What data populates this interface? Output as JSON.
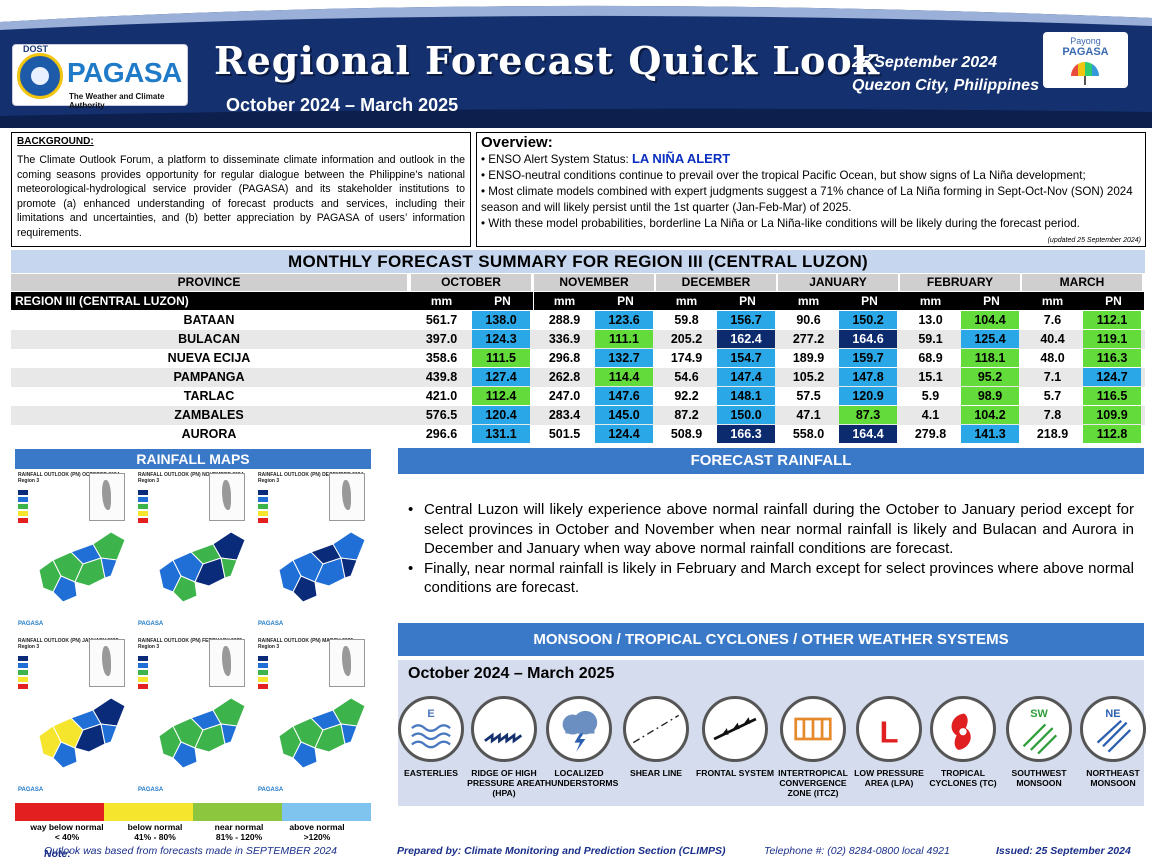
{
  "header": {
    "dost_label": "DOST",
    "agency_name": "PAGASA",
    "agency_tagline": "The Weather and Climate Authority",
    "title": "Regional Forecast Quick Look",
    "period": "October 2024 – March 2025",
    "date": "25 September 2024",
    "place": "Quezon City, Philippines",
    "payong_top": "Payong",
    "payong_name": "PAGASA",
    "colors": {
      "navy": "#14306e",
      "accent_blue": "#3a78c8",
      "light_blue": "#c6d6ee"
    }
  },
  "background": {
    "title": "BACKGROUND:",
    "text": "The Climate Outlook Forum, a platform to disseminate climate information and outlook in the coming seasons provides opportunity for regular dialogue between the Philippine’s national meteorological-hydrological service provider (PAGASA) and its stakeholder institutions to promote (a) enhanced understanding of forecast products and services, including their limitations and uncertainties, and (b) better appreciation by PAGASA of users’ information requirements."
  },
  "overview": {
    "title": "Overview:",
    "enso_prefix": "ENSO Alert System Status: ",
    "enso_status": "LA NIÑA ALERT",
    "bullets": [
      "ENSO-neutral conditions continue to prevail over the tropical Pacific Ocean, but show signs of La Niña development;",
      "Most climate models combined with expert judgments suggest a 71% chance of La Niña forming in Sept-Oct-Nov (SON) 2024 season and will likely persist until the 1st quarter (Jan-Feb-Mar) of 2025.",
      "With these model probabilities, borderline La Niña or La Niña-like conditions will be likely during the forecast period."
    ],
    "updated": "(updated 25 September 2024)"
  },
  "summary": {
    "title": "MONTHLY FORECAST SUMMARY FOR REGION III (CENTRAL LUZON)",
    "province_header": "PROVINCE",
    "region_label": "REGION III (CENTRAL LUZON)",
    "months": [
      "OCTOBER",
      "NOVEMBER",
      "DECEMBER",
      "JANUARY",
      "FEBRUARY",
      "MARCH"
    ],
    "unit_mm": "mm",
    "unit_pn": "PN",
    "rows": [
      {
        "province": "BATAAN",
        "values": [
          [
            "561.7",
            "138.0"
          ],
          [
            "288.9",
            "123.6"
          ],
          [
            "59.8",
            "156.7"
          ],
          [
            "90.6",
            "150.2"
          ],
          [
            "13.0",
            "104.4"
          ],
          [
            "7.6",
            "112.1"
          ]
        ]
      },
      {
        "province": "BULACAN",
        "values": [
          [
            "397.0",
            "124.3"
          ],
          [
            "336.9",
            "111.1"
          ],
          [
            "205.2",
            "162.4"
          ],
          [
            "277.2",
            "164.6"
          ],
          [
            "59.1",
            "125.4"
          ],
          [
            "40.4",
            "119.1"
          ]
        ]
      },
      {
        "province": "NUEVA ECIJA",
        "values": [
          [
            "358.6",
            "111.5"
          ],
          [
            "296.8",
            "132.7"
          ],
          [
            "174.9",
            "154.7"
          ],
          [
            "189.9",
            "159.7"
          ],
          [
            "68.9",
            "118.1"
          ],
          [
            "48.0",
            "116.3"
          ]
        ]
      },
      {
        "province": "PAMPANGA",
        "values": [
          [
            "439.8",
            "127.4"
          ],
          [
            "262.8",
            "114.4"
          ],
          [
            "54.6",
            "147.4"
          ],
          [
            "105.2",
            "147.8"
          ],
          [
            "15.1",
            "95.2"
          ],
          [
            "7.1",
            "124.7"
          ]
        ]
      },
      {
        "province": "TARLAC",
        "values": [
          [
            "421.0",
            "112.4"
          ],
          [
            "247.0",
            "147.6"
          ],
          [
            "92.2",
            "148.1"
          ],
          [
            "57.5",
            "120.9"
          ],
          [
            "5.9",
            "98.9"
          ],
          [
            "5.7",
            "116.5"
          ]
        ]
      },
      {
        "province": "ZAMBALES",
        "values": [
          [
            "576.5",
            "120.4"
          ],
          [
            "283.4",
            "145.0"
          ],
          [
            "87.2",
            "150.0"
          ],
          [
            "47.1",
            "87.3"
          ],
          [
            "4.1",
            "104.2"
          ],
          [
            "7.8",
            "109.9"
          ]
        ]
      },
      {
        "province": "AURORA",
        "values": [
          [
            "296.6",
            "131.1"
          ],
          [
            "501.5",
            "124.4"
          ],
          [
            "508.9",
            "166.3"
          ],
          [
            "558.0",
            "164.4"
          ],
          [
            "279.8",
            "141.3"
          ],
          [
            "218.9",
            "112.8"
          ]
        ]
      }
    ]
  },
  "rainfall_maps": {
    "title": "RAINFALL MAPS",
    "maps": [
      {
        "title": "RAINFALL OUTLOOK (PN) OCTOBER 2024",
        "region": "Region 3"
      },
      {
        "title": "RAINFALL OUTLOOK (PN) NOVEMBER 2024",
        "region": "Region 3"
      },
      {
        "title": "RAINFALL OUTLOOK (PN) DECEMBER 2024",
        "region": "Region 3"
      },
      {
        "title": "RAINFALL OUTLOOK (PN) JANUARY 2025",
        "region": "Region 3"
      },
      {
        "title": "RAINFALL OUTLOOK (PN) FEBRUARY 2025",
        "region": "Region 3"
      },
      {
        "title": "RAINFALL OUTLOOK (PN) MARCH 2025",
        "region": "Region 3"
      }
    ],
    "legend": [
      {
        "label": "way below normal",
        "range": "< 40%",
        "color": "#e41f1f"
      },
      {
        "label": "below normal",
        "range": "41%  -  80%",
        "color": "#f5e52c"
      },
      {
        "label": "near normal",
        "range": "81% - 120%",
        "color": "#3cb44b"
      },
      {
        "label": "above normal",
        "range": ">120%",
        "color": "#4aa8e0"
      }
    ]
  },
  "forecast_rainfall": {
    "title": "FORECAST RAINFALL",
    "bullets": [
      "Central Luzon will likely experience above normal rainfall during the October to January period except for select provinces in October and November when near normal rainfall is likely and Bulacan and Aurora in December and January when way above normal rainfall conditions are forecast.",
      "Finally, near normal rainfall is likely in February and March except for select provinces where above normal conditions are forecast."
    ]
  },
  "systems": {
    "title": "MONSOON / TROPICAL CYCLONES / OTHER WEATHER SYSTEMS",
    "period": "October 2024 – March 2025",
    "items": [
      {
        "label": "EASTERLIES",
        "icon": "easterlies-icon",
        "glyph": "E"
      },
      {
        "label": "RIDGE OF HIGH PRESSURE AREA (HPA)",
        "icon": "ridge-icon",
        "glyph": ""
      },
      {
        "label": "LOCALIZED THUNDERSTORMS",
        "icon": "thunderstorm-icon",
        "glyph": ""
      },
      {
        "label": "SHEAR LINE",
        "icon": "shear-line-icon",
        "glyph": ""
      },
      {
        "label": "FRONTAL SYSTEM",
        "icon": "frontal-system-icon",
        "glyph": ""
      },
      {
        "label": "INTERTROPICAL CONVERGENCE ZONE (ITCZ)",
        "icon": "itcz-icon",
        "glyph": ""
      },
      {
        "label": "LOW PRESSURE AREA (LPA)",
        "icon": "low-pressure-icon",
        "glyph": "L"
      },
      {
        "label": "TROPICAL CYCLONES (TC)",
        "icon": "tropical-cyclone-icon",
        "glyph": ""
      },
      {
        "label": "SOUTHWEST MONSOON",
        "icon": "southwest-monsoon-icon",
        "glyph": "SW"
      },
      {
        "label": "NORTHEAST MONSOON",
        "icon": "northeast-monsoon-icon",
        "glyph": "NE"
      }
    ]
  },
  "footer": {
    "note_label": "Note:",
    "note": " Outlook was based from forecasts made in SEPTEMBER 2024",
    "prepared": "Prepared by: Climate Monitoring and Prediction Section (CLIMPS)",
    "telephone": "Telephone #: (02) 8284-0800 local 4921",
    "issued": "Issued: 25 September 2024"
  }
}
